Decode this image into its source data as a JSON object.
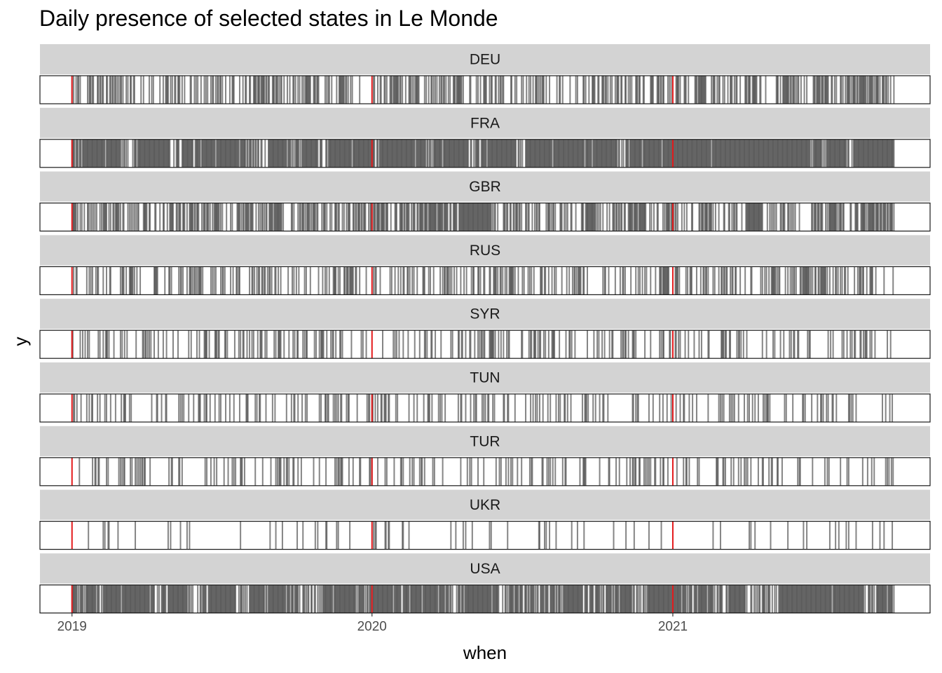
{
  "chart_data": {
    "type": "barcode",
    "title": "Daily presence of selected states in Le Monde",
    "xlabel": "when",
    "ylabel": "y",
    "x_range": [
      "2018-11-23",
      "2021-11-10"
    ],
    "x_ticks": [
      "2019",
      "2020",
      "2021"
    ],
    "x_tick_dates": [
      "2019-01-01",
      "2020-01-01",
      "2021-01-01"
    ],
    "reference_lines": {
      "dates": [
        "2019-01-01",
        "2020-01-01",
        "2021-01-01"
      ],
      "color": "#e41a1c"
    },
    "mark_color": "#333333",
    "strip_color": "#d3d3d3",
    "data_start": "2019-01-01",
    "data_end": "2021-09-27",
    "facets": [
      {
        "name": "DEU",
        "mark_density": 0.45,
        "seed": 11
      },
      {
        "name": "FRA",
        "mark_density": 0.97,
        "seed": 23
      },
      {
        "name": "GBR",
        "mark_density": 0.55,
        "seed": 37
      },
      {
        "name": "RUS",
        "mark_density": 0.35,
        "seed": 41
      },
      {
        "name": "SYR",
        "mark_density": 0.22,
        "seed": 53
      },
      {
        "name": "TUN",
        "mark_density": 0.2,
        "seed": 67
      },
      {
        "name": "TUR",
        "mark_density": 0.22,
        "seed": 71
      },
      {
        "name": "UKR",
        "mark_density": 0.08,
        "seed": 83
      },
      {
        "name": "USA",
        "mark_density": 0.92,
        "seed": 97
      }
    ]
  }
}
